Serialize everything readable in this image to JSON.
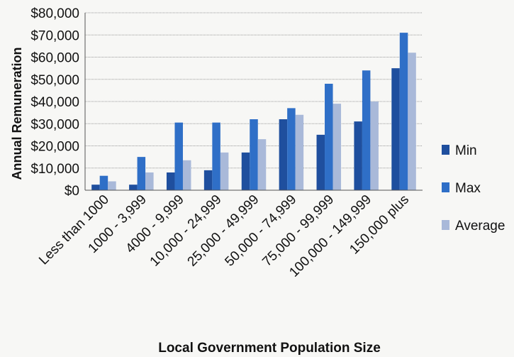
{
  "chart_data": {
    "type": "bar",
    "title": "",
    "xlabel": "Local Government Population Size",
    "ylabel": "Annual Remuneration",
    "ylim": [
      0,
      80000
    ],
    "y_ticks": [
      "$0",
      "$10,000",
      "$20,000",
      "$30,000",
      "$40,000",
      "$50,000",
      "$60,000",
      "$70,000",
      "$80,000"
    ],
    "grid": true,
    "legend_position": "right",
    "categories": [
      "Less than 1000",
      "1000 - 3,999",
      "4000 - 9,999",
      "10,000 - 24,999",
      "25,000 - 49,999",
      "50,000 - 74,999",
      "75,000 - 99,999",
      "100,000 - 149,999",
      "150,000 plus"
    ],
    "series": [
      {
        "name": "Min",
        "color": "#1f4f9e",
        "values": [
          2500,
          2500,
          8000,
          9000,
          17000,
          32000,
          25000,
          31000,
          55000
        ]
      },
      {
        "name": "Max",
        "color": "#2f6fc7",
        "values": [
          6500,
          15000,
          30500,
          30500,
          32000,
          37000,
          48000,
          54000,
          71000
        ]
      },
      {
        "name": "Average",
        "color": "#a9b9d9",
        "values": [
          4000,
          8000,
          13500,
          17000,
          23000,
          34000,
          39000,
          40000,
          62000
        ]
      }
    ]
  }
}
